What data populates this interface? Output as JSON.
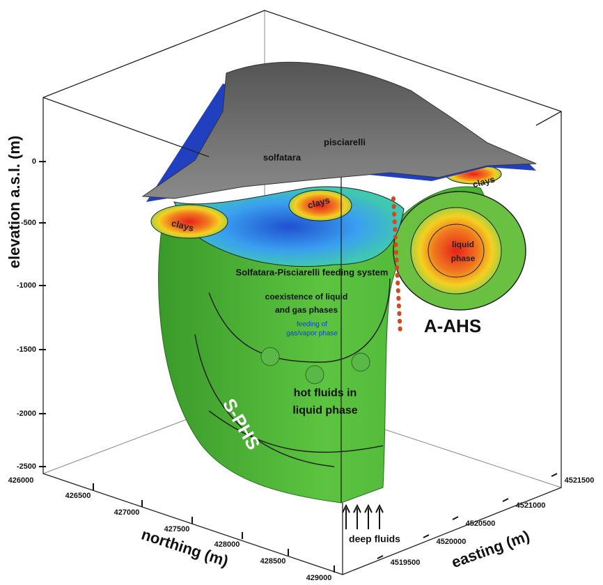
{
  "axes": {
    "elevation": {
      "title": "elevation a.s.l. (m)",
      "ticks": [
        "0",
        "-500",
        "-1000",
        "-1500",
        "-2000",
        "-2500"
      ]
    },
    "northing": {
      "title": "northing (m)",
      "ticks": [
        "426000",
        "426500",
        "427000",
        "427500",
        "428000",
        "428500",
        "429000"
      ]
    },
    "easting": {
      "title": "easting (m)",
      "ticks": [
        "4519500",
        "4520000",
        "4520500",
        "4521000",
        "4521500"
      ]
    }
  },
  "labels": {
    "pisciarelli": "pisciarelli",
    "solfatara": "solfatara",
    "clays": [
      "clays",
      "clays",
      "clays"
    ],
    "liquid_phase": [
      "liquid",
      "phase"
    ],
    "feeding_system": "Solfatara-Pisciarelli feeding system",
    "coexistence": [
      "coexistence of liquid",
      "and gas phases"
    ],
    "feeding_gas": [
      "feeding of",
      "gas/vapor phase"
    ],
    "hot_fluids": [
      "hot fluids in",
      "liquid phase"
    ],
    "a_ahs": "A-AHS",
    "s_phs": "S-PHS",
    "deep_fluids": "deep fluids"
  }
}
